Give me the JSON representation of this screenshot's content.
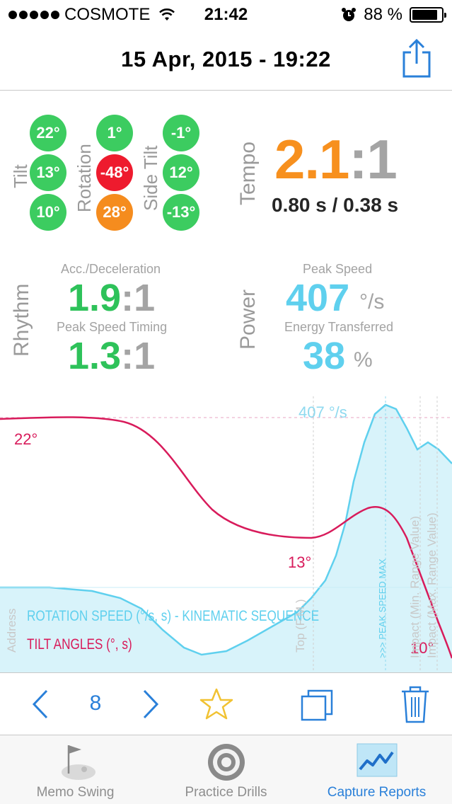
{
  "status_bar": {
    "carrier": "COSMOTE",
    "time": "21:42",
    "battery": "88 %",
    "battery_level": 0.88
  },
  "header": {
    "title": "15 Apr, 2015 - 19:22"
  },
  "angles": {
    "tilt_label": "Tilt",
    "rotation_label": "Rotation",
    "side_tilt_label": "Side Tilt",
    "tilt": [
      "22°",
      "13°",
      "10°"
    ],
    "rotation": [
      "1°",
      "-48°",
      "28°"
    ],
    "side_tilt": [
      "-1°",
      "12°",
      "-13°"
    ]
  },
  "tempo": {
    "label": "Tempo",
    "value": "2.1",
    "colon": ":",
    "denominator": "1",
    "detail": "0.80 s / 0.38 s"
  },
  "rhythm": {
    "label": "Rhythm",
    "acc_label": "Acc./Deceleration",
    "acc_value": "1.9",
    "acc_den": "1",
    "timing_label": "Peak Speed Timing",
    "timing_value": "1.3",
    "timing_den": "1",
    "colon": ":"
  },
  "power": {
    "label": "Power",
    "peak_label": "Peak Speed",
    "peak_value": "407",
    "peak_unit": "°/s",
    "energy_label": "Energy Transferred",
    "energy_value": "38",
    "energy_unit": "%"
  },
  "chart": {
    "peak_value_label": "407 °/s",
    "tilt_start_label": "22°",
    "tilt_mid_label": "13°",
    "tilt_end_label": "10°",
    "legend_rotation": "ROTATION SPEED (°/s, s) - KINEMATIC SEQUENCE",
    "legend_tilt": "TILT ANGLES (°, s)",
    "marker_address": "Address",
    "marker_top": "Top (F.M.)",
    "marker_peak": ">>> PEAK SPEED MAX",
    "marker_impact_min": "Impact (Min. Range Value)",
    "marker_impact_max": "Impact (Max. Range Value)",
    "rotation_color": "#5fd0ee",
    "tilt_color": "#d81b5b"
  },
  "toolbar": {
    "count": "8"
  },
  "tabs": [
    {
      "label": "Memo Swing",
      "icon": "golf-flag-icon"
    },
    {
      "label": "Practice Drills",
      "icon": "target-icon"
    },
    {
      "label": "Capture Reports",
      "icon": "chart-report-icon"
    }
  ]
}
